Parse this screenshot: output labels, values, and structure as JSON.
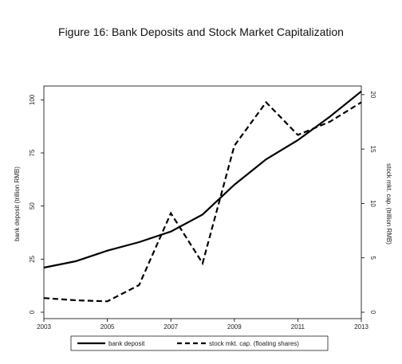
{
  "page": {
    "title": "Figure 16: Bank Deposits and Stock Market Capitalization"
  },
  "chart_data": {
    "type": "line",
    "x": [
      2003,
      2004,
      2005,
      2006,
      2007,
      2008,
      2009,
      2010,
      2011,
      2012,
      2013
    ],
    "x_ticks": [
      "2003",
      "2005",
      "2007",
      "2009",
      "2011",
      "2013"
    ],
    "xlim": [
      2003,
      2013
    ],
    "ylabel": "bank deposit (trillion RMB)",
    "ylim": [
      0,
      105
    ],
    "y_ticks": [
      "0",
      "25",
      "50",
      "75",
      "100"
    ],
    "y2label": "stock mkt. cap. (trillion RMB)",
    "y2lim": [
      0,
      20.5
    ],
    "y2_ticks": [
      "0",
      "5",
      "10",
      "15",
      "20"
    ],
    "grid": false,
    "legend_position": "bottom",
    "series": [
      {
        "name": "bank deposit",
        "axis": "left",
        "style": "solid",
        "color": "#000000",
        "values": [
          21,
          24,
          29,
          33,
          38,
          46,
          60,
          72,
          81,
          92,
          104
        ]
      },
      {
        "name": "stock mkt. cap. (floating shares)",
        "axis": "right",
        "style": "dashed",
        "color": "#000000",
        "values": [
          1.3,
          1.1,
          1.0,
          2.5,
          9.1,
          4.5,
          15.3,
          19.3,
          16.3,
          17.5,
          19.3
        ]
      }
    ]
  }
}
